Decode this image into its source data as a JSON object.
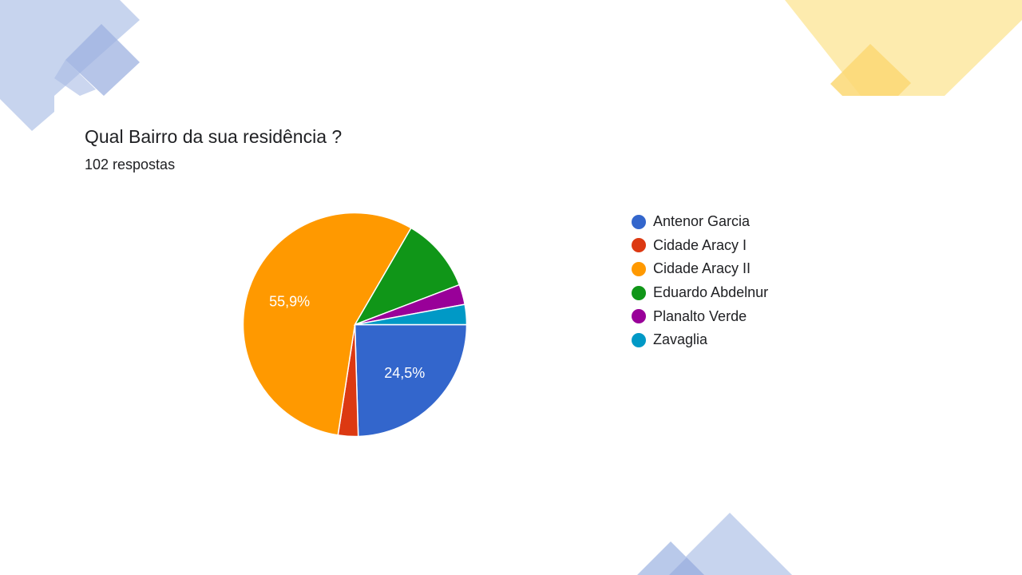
{
  "question": {
    "title": "Qual Bairro da sua residência ?",
    "responses": "102 respostas"
  },
  "colors": {
    "decor_blue": "#aec3e8",
    "decor_blue_dark": "#8ea8db",
    "decor_yellow": "#fde9a6",
    "decor_yellow_dark": "#fbd66e"
  },
  "chart_data": {
    "type": "pie",
    "title": "Qual Bairro da sua residência ?",
    "legend_position": "right",
    "slices": [
      {
        "label": "Antenor Garcia",
        "percent": 24.5,
        "color": "#3366cc",
        "data_label": "24,5%"
      },
      {
        "label": "Cidade Aracy I",
        "percent": 2.9,
        "color": "#dc3912",
        "data_label": ""
      },
      {
        "label": "Cidade Aracy II",
        "percent": 55.9,
        "color": "#ff9900",
        "data_label": "55,9%"
      },
      {
        "label": "Eduardo Abdelnur",
        "percent": 10.8,
        "color": "#109618",
        "data_label": ""
      },
      {
        "label": "Planalto Verde",
        "percent": 2.9,
        "color": "#990099",
        "data_label": ""
      },
      {
        "label": "Zavaglia",
        "percent": 2.9,
        "color": "#0099c6",
        "data_label": ""
      }
    ]
  }
}
